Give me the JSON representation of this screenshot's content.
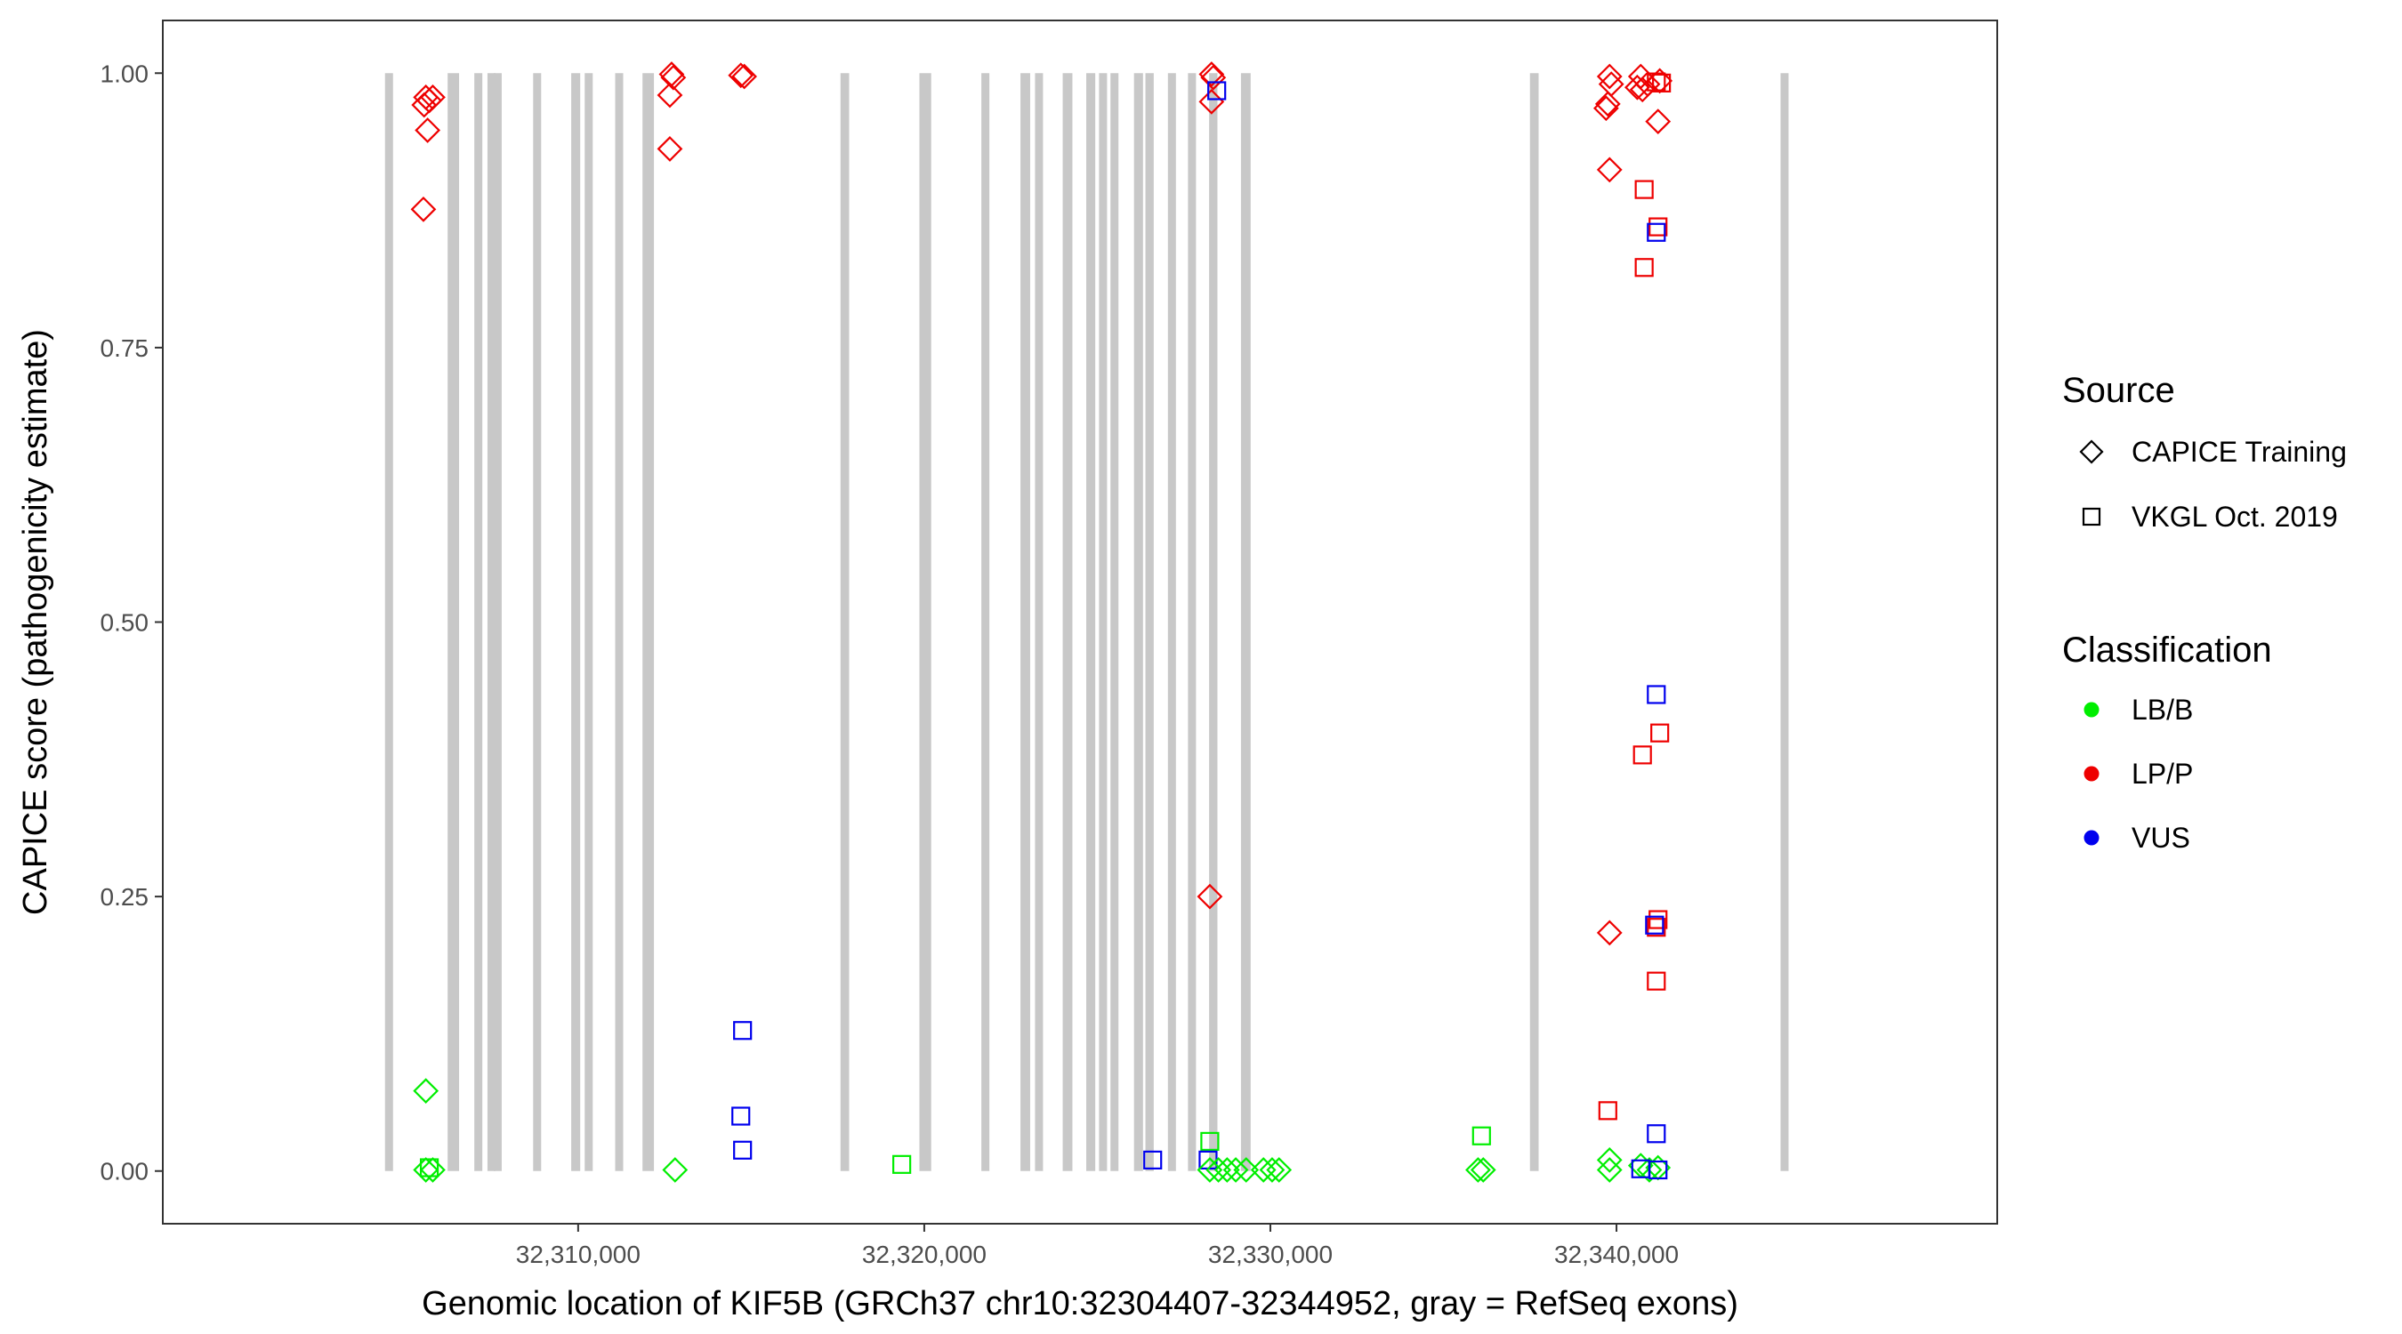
{
  "chart_data": {
    "type": "scatter",
    "title": "",
    "xlabel": "Genomic location of KIF5B (GRCh37 chr10:32304407-32344952, gray = RefSeq exons)",
    "ylabel": "CAPICE score (pathogenicity estimate)",
    "xlim": [
      32298000,
      32351000
    ],
    "ylim": [
      -0.048,
      1.048
    ],
    "x_ticks": [
      32310000,
      32320000,
      32330000,
      32340000
    ],
    "x_tick_labels": [
      "32,310,000",
      "32,320,000",
      "32,330,000",
      "32,340,000"
    ],
    "y_ticks": [
      0,
      0.25,
      0.5,
      0.75,
      1.0
    ],
    "y_tick_labels": [
      "0.00",
      "0.25",
      "0.50",
      "0.75",
      "1.00"
    ],
    "grid": false,
    "exon_color": "#c8c8c8",
    "exons": [
      {
        "start": 32304420,
        "end": 32304640
      },
      {
        "start": 32306230,
        "end": 32306560
      },
      {
        "start": 32307000,
        "end": 32307220
      },
      {
        "start": 32307380,
        "end": 32307520
      },
      {
        "start": 32307560,
        "end": 32307680
      },
      {
        "start": 32308700,
        "end": 32308900
      },
      {
        "start": 32309800,
        "end": 32310060
      },
      {
        "start": 32310190,
        "end": 32310360
      },
      {
        "start": 32311070,
        "end": 32311290
      },
      {
        "start": 32311860,
        "end": 32312190
      },
      {
        "start": 32317580,
        "end": 32317830
      },
      {
        "start": 32319860,
        "end": 32320200
      },
      {
        "start": 32321650,
        "end": 32321870
      },
      {
        "start": 32322780,
        "end": 32323060
      },
      {
        "start": 32323200,
        "end": 32323420
      },
      {
        "start": 32324000,
        "end": 32324280
      },
      {
        "start": 32324680,
        "end": 32324940
      },
      {
        "start": 32325050,
        "end": 32325250
      },
      {
        "start": 32325380,
        "end": 32325560
      },
      {
        "start": 32326060,
        "end": 32326320
      },
      {
        "start": 32326390,
        "end": 32326630
      },
      {
        "start": 32327040,
        "end": 32327220
      },
      {
        "start": 32327620,
        "end": 32327800
      },
      {
        "start": 32328230,
        "end": 32328470
      },
      {
        "start": 32329150,
        "end": 32329430
      },
      {
        "start": 32337500,
        "end": 32337750
      },
      {
        "start": 32344740,
        "end": 32344952
      }
    ],
    "legend": {
      "position": "right",
      "source_title": "Source",
      "source_items": [
        {
          "label": "CAPICE Training",
          "shape": "diamond"
        },
        {
          "label": "VKGL Oct. 2019",
          "shape": "square"
        }
      ],
      "class_title": "Classification",
      "class_items": [
        {
          "label": "LB/B",
          "color": "#00ee00"
        },
        {
          "label": "LP/P",
          "color": "#ee0000"
        },
        {
          "label": "VUS",
          "color": "#0000ee"
        }
      ]
    },
    "colors": {
      "LB/B": "#00ee00",
      "LP/P": "#ee0000",
      "VUS": "#0000ee"
    },
    "points": [
      {
        "x": 32305600,
        "y": 0.978,
        "shape": "diamond",
        "cls": "LP/P"
      },
      {
        "x": 32305800,
        "y": 0.978,
        "shape": "diamond",
        "cls": "LP/P"
      },
      {
        "x": 32305700,
        "y": 0.975,
        "shape": "diamond",
        "cls": "LP/P"
      },
      {
        "x": 32305550,
        "y": 0.971,
        "shape": "diamond",
        "cls": "LP/P"
      },
      {
        "x": 32305650,
        "y": 0.948,
        "shape": "diamond",
        "cls": "LP/P"
      },
      {
        "x": 32305530,
        "y": 0.876,
        "shape": "diamond",
        "cls": "LP/P"
      },
      {
        "x": 32305600,
        "y": 0.073,
        "shape": "diamond",
        "cls": "LB/B"
      },
      {
        "x": 32305600,
        "y": 0.001,
        "shape": "diamond",
        "cls": "LB/B"
      },
      {
        "x": 32305800,
        "y": 0.001,
        "shape": "diamond",
        "cls": "LB/B"
      },
      {
        "x": 32305700,
        "y": 0.003,
        "shape": "square",
        "cls": "LB/B"
      },
      {
        "x": 32312700,
        "y": 0.999,
        "shape": "diamond",
        "cls": "LP/P"
      },
      {
        "x": 32312750,
        "y": 0.996,
        "shape": "diamond",
        "cls": "LP/P"
      },
      {
        "x": 32312650,
        "y": 0.98,
        "shape": "diamond",
        "cls": "LP/P"
      },
      {
        "x": 32312650,
        "y": 0.931,
        "shape": "diamond",
        "cls": "LP/P"
      },
      {
        "x": 32312800,
        "y": 0.001,
        "shape": "diamond",
        "cls": "LB/B"
      },
      {
        "x": 32314700,
        "y": 0.998,
        "shape": "diamond",
        "cls": "LP/P"
      },
      {
        "x": 32314800,
        "y": 0.997,
        "shape": "diamond",
        "cls": "LP/P"
      },
      {
        "x": 32314750,
        "y": 0.128,
        "shape": "square",
        "cls": "VUS"
      },
      {
        "x": 32314700,
        "y": 0.05,
        "shape": "square",
        "cls": "VUS"
      },
      {
        "x": 32314750,
        "y": 0.019,
        "shape": "square",
        "cls": "VUS"
      },
      {
        "x": 32319350,
        "y": 0.006,
        "shape": "square",
        "cls": "LB/B"
      },
      {
        "x": 32326600,
        "y": 0.01,
        "shape": "square",
        "cls": "VUS"
      },
      {
        "x": 32328300,
        "y": 0.999,
        "shape": "diamond",
        "cls": "LP/P"
      },
      {
        "x": 32328350,
        "y": 0.996,
        "shape": "diamond",
        "cls": "LP/P"
      },
      {
        "x": 32328300,
        "y": 0.974,
        "shape": "diamond",
        "cls": "LP/P"
      },
      {
        "x": 32328450,
        "y": 0.984,
        "shape": "square",
        "cls": "VUS"
      },
      {
        "x": 32328250,
        "y": 0.25,
        "shape": "diamond",
        "cls": "LP/P"
      },
      {
        "x": 32328250,
        "y": 0.027,
        "shape": "square",
        "cls": "LB/B"
      },
      {
        "x": 32328200,
        "y": 0.01,
        "shape": "square",
        "cls": "VUS"
      },
      {
        "x": 32328250,
        "y": 0.001,
        "shape": "diamond",
        "cls": "LB/B"
      },
      {
        "x": 32328500,
        "y": 0.001,
        "shape": "diamond",
        "cls": "LB/B"
      },
      {
        "x": 32328750,
        "y": 0.001,
        "shape": "diamond",
        "cls": "LB/B"
      },
      {
        "x": 32329000,
        "y": 0.001,
        "shape": "diamond",
        "cls": "LB/B"
      },
      {
        "x": 32329300,
        "y": 0.001,
        "shape": "diamond",
        "cls": "LB/B"
      },
      {
        "x": 32329800,
        "y": 0.001,
        "shape": "diamond",
        "cls": "LB/B"
      },
      {
        "x": 32330050,
        "y": 0.001,
        "shape": "diamond",
        "cls": "LB/B"
      },
      {
        "x": 32330250,
        "y": 0.001,
        "shape": "diamond",
        "cls": "LB/B"
      },
      {
        "x": 32336000,
        "y": 0.001,
        "shape": "diamond",
        "cls": "LB/B"
      },
      {
        "x": 32336150,
        "y": 0.001,
        "shape": "diamond",
        "cls": "LB/B"
      },
      {
        "x": 32336100,
        "y": 0.032,
        "shape": "square",
        "cls": "LB/B"
      },
      {
        "x": 32339800,
        "y": 0.997,
        "shape": "diamond",
        "cls": "LP/P"
      },
      {
        "x": 32339850,
        "y": 0.99,
        "shape": "diamond",
        "cls": "LP/P"
      },
      {
        "x": 32339750,
        "y": 0.972,
        "shape": "diamond",
        "cls": "LP/P"
      },
      {
        "x": 32339700,
        "y": 0.968,
        "shape": "diamond",
        "cls": "LP/P"
      },
      {
        "x": 32339800,
        "y": 0.912,
        "shape": "diamond",
        "cls": "LP/P"
      },
      {
        "x": 32339800,
        "y": 0.217,
        "shape": "diamond",
        "cls": "LP/P"
      },
      {
        "x": 32339800,
        "y": 0.01,
        "shape": "diamond",
        "cls": "LB/B"
      },
      {
        "x": 32339800,
        "y": 0.001,
        "shape": "diamond",
        "cls": "LB/B"
      },
      {
        "x": 32339750,
        "y": 0.055,
        "shape": "square",
        "cls": "LP/P"
      },
      {
        "x": 32340700,
        "y": 0.997,
        "shape": "diamond",
        "cls": "LP/P"
      },
      {
        "x": 32340600,
        "y": 0.987,
        "shape": "diamond",
        "cls": "LP/P"
      },
      {
        "x": 32340750,
        "y": 0.985,
        "shape": "diamond",
        "cls": "LP/P"
      },
      {
        "x": 32340900,
        "y": 0.99,
        "shape": "diamond",
        "cls": "LP/P"
      },
      {
        "x": 32341250,
        "y": 0.993,
        "shape": "diamond",
        "cls": "LP/P"
      },
      {
        "x": 32341200,
        "y": 0.956,
        "shape": "diamond",
        "cls": "LP/P"
      },
      {
        "x": 32341150,
        "y": 0.992,
        "shape": "square",
        "cls": "LP/P"
      },
      {
        "x": 32341300,
        "y": 0.991,
        "shape": "square",
        "cls": "LP/P"
      },
      {
        "x": 32340800,
        "y": 0.894,
        "shape": "square",
        "cls": "LP/P"
      },
      {
        "x": 32340800,
        "y": 0.823,
        "shape": "square",
        "cls": "LP/P"
      },
      {
        "x": 32341200,
        "y": 0.86,
        "shape": "square",
        "cls": "LP/P"
      },
      {
        "x": 32341150,
        "y": 0.855,
        "shape": "square",
        "cls": "VUS"
      },
      {
        "x": 32341150,
        "y": 0.434,
        "shape": "square",
        "cls": "VUS"
      },
      {
        "x": 32341250,
        "y": 0.399,
        "shape": "square",
        "cls": "LP/P"
      },
      {
        "x": 32340750,
        "y": 0.379,
        "shape": "square",
        "cls": "LP/P"
      },
      {
        "x": 32341200,
        "y": 0.229,
        "shape": "square",
        "cls": "LP/P"
      },
      {
        "x": 32341150,
        "y": 0.222,
        "shape": "square",
        "cls": "LP/P"
      },
      {
        "x": 32341100,
        "y": 0.224,
        "shape": "square",
        "cls": "VUS"
      },
      {
        "x": 32341150,
        "y": 0.173,
        "shape": "square",
        "cls": "LP/P"
      },
      {
        "x": 32341150,
        "y": 0.034,
        "shape": "square",
        "cls": "VUS"
      },
      {
        "x": 32340700,
        "y": 0.005,
        "shape": "diamond",
        "cls": "LB/B"
      },
      {
        "x": 32340950,
        "y": 0.001,
        "shape": "diamond",
        "cls": "LB/B"
      },
      {
        "x": 32341200,
        "y": 0.003,
        "shape": "diamond",
        "cls": "LB/B"
      },
      {
        "x": 32340700,
        "y": 0.002,
        "shape": "square",
        "cls": "VUS"
      },
      {
        "x": 32341200,
        "y": 0.001,
        "shape": "square",
        "cls": "VUS"
      }
    ]
  }
}
